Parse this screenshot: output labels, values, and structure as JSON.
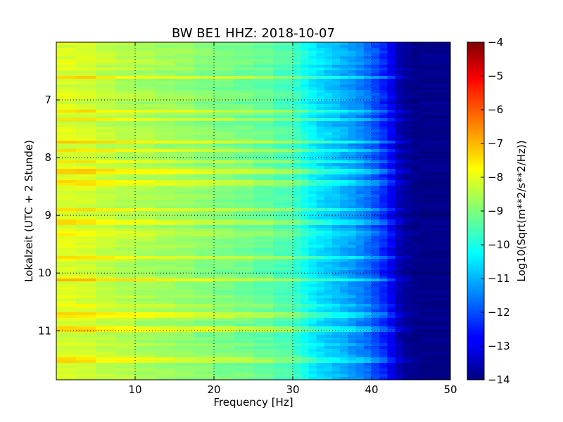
{
  "chart_data": {
    "type": "heatmap",
    "title": "BW BE1 HHZ: 2018-10-07",
    "xlabel": "Frequency [Hz]",
    "ylabel": "Lokalzeit (UTC + 2 Stunde)",
    "colorbar_label": "Log10(Sqrt(m**2/s**2/Hz))",
    "colormap": "jet",
    "xlim": [
      0,
      50
    ],
    "ylim": [
      6.0,
      11.85
    ],
    "y_inverted": true,
    "clim": [
      -14,
      -4
    ],
    "grid": true,
    "x_ticks": [
      10,
      20,
      30,
      40,
      50
    ],
    "x_tick_labels": [
      "10",
      "20",
      "30",
      "40",
      "50"
    ],
    "y_ticks": [
      7,
      8,
      9,
      10,
      11
    ],
    "y_tick_labels": [
      "7",
      "8",
      "9",
      "10",
      "11"
    ],
    "colorbar_ticks": [
      -4,
      -5,
      -6,
      -7,
      -8,
      -9,
      -10,
      -11,
      -12,
      -13,
      -14
    ],
    "colorbar_tick_labels": [
      "−4",
      "−5",
      "−6",
      "−7",
      "−8",
      "−9",
      "−10",
      "−11",
      "−12",
      "−13",
      "−14"
    ],
    "frequency_profile": {
      "frequency_hz": [
        0,
        2,
        5,
        10,
        15,
        20,
        25,
        30,
        33,
        35,
        38,
        40,
        42,
        43.5,
        45,
        50
      ],
      "log10_amplitude": [
        -8.3,
        -8.0,
        -8.3,
        -8.55,
        -8.75,
        -8.95,
        -9.2,
        -9.6,
        -10.5,
        -10.8,
        -11.3,
        -11.8,
        -12.6,
        -13.5,
        -13.9,
        -13.9
      ]
    },
    "bright_time_bands": [
      {
        "time": 6.62,
        "level": 0.7
      },
      {
        "time": 7.2,
        "level": 0.9
      },
      {
        "time": 7.35,
        "level": 0.6
      },
      {
        "time": 7.72,
        "level": 1.0
      },
      {
        "time": 7.87,
        "level": 0.9
      },
      {
        "time": 8.08,
        "level": 0.6
      },
      {
        "time": 8.25,
        "level": 1.0
      },
      {
        "time": 8.43,
        "level": 0.8
      },
      {
        "time": 8.9,
        "level": 1.0
      },
      {
        "time": 9.13,
        "level": 0.8
      },
      {
        "time": 9.32,
        "level": 0.6
      },
      {
        "time": 9.73,
        "level": 0.8
      },
      {
        "time": 10.13,
        "level": 1.0
      },
      {
        "time": 10.55,
        "level": 0.6
      },
      {
        "time": 10.72,
        "level": 0.9
      },
      {
        "time": 10.98,
        "level": 0.8
      },
      {
        "time": 11.5,
        "level": 0.6
      }
    ]
  }
}
